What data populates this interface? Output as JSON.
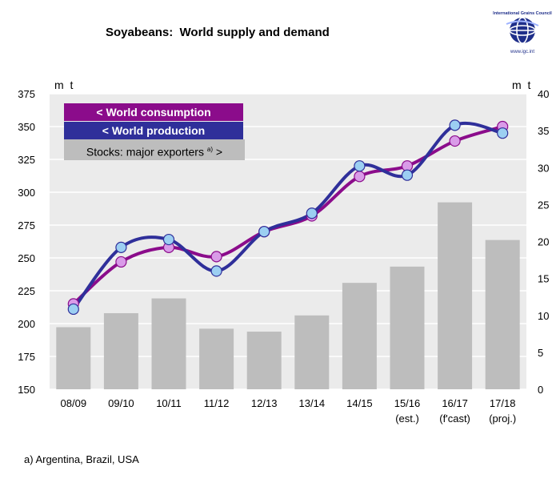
{
  "title": "Soyabeans:  World supply and demand",
  "logo": {
    "org": "International Grains Council",
    "url": "www.igc.int"
  },
  "footnote": "a) Argentina, Brazil, USA",
  "left_axis_unit": "m t",
  "right_axis_unit": "m t",
  "legend": {
    "consumption": "< World consumption",
    "production": "< World production",
    "stocks": "Stocks: major exporters",
    "stocks_sup": "a)",
    "stocks_arrow": " >"
  },
  "colors": {
    "consumption_line": "#8b0c8b",
    "consumption_marker": "#d99be8",
    "production_line": "#2f2f9a",
    "production_marker": "#9ccff2",
    "bars": "#bdbdbd",
    "plot_bg": "#ebebeb",
    "grid": "#ffffff"
  },
  "chart_data": {
    "type": "bar+line",
    "categories": [
      "08/09",
      "09/10",
      "10/11",
      "11/12",
      "12/13",
      "13/14",
      "14/15",
      "15/16",
      "16/17",
      "17/18"
    ],
    "category_sublabels": [
      "",
      "",
      "",
      "",
      "",
      "",
      "",
      "(est.)",
      "(f'cast)",
      "(proj.)"
    ],
    "left_axis": {
      "unit": "m t",
      "ylim": [
        150,
        375
      ],
      "ticks": [
        150,
        175,
        200,
        225,
        250,
        275,
        300,
        325,
        350,
        375
      ]
    },
    "right_axis": {
      "unit": "m t",
      "ylim": [
        0,
        40
      ],
      "ticks": [
        0,
        5,
        10,
        15,
        20,
        25,
        30,
        35,
        40
      ]
    },
    "series": [
      {
        "name": "World consumption",
        "type": "line",
        "axis": "left",
        "values": [
          215,
          247,
          258,
          251,
          270,
          282,
          312,
          320,
          339,
          350
        ]
      },
      {
        "name": "World production",
        "type": "line",
        "axis": "left",
        "values": [
          211,
          258,
          264,
          240,
          270,
          284,
          320,
          313,
          351,
          345
        ]
      },
      {
        "name": "Stocks: major exporters a)",
        "type": "bar",
        "axis": "right",
        "values": [
          8.4,
          10.3,
          12.3,
          8.2,
          7.8,
          10.0,
          14.4,
          16.6,
          25.3,
          20.2
        ]
      }
    ],
    "grid": true
  }
}
